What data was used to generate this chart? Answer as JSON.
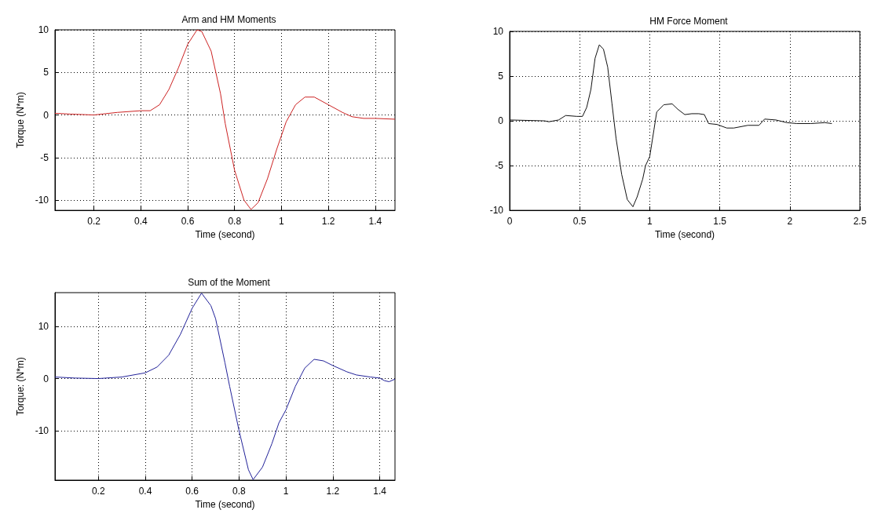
{
  "chart_data": [
    {
      "type": "line",
      "title": "Arm and HM Moments",
      "xlabel": "Time (second)",
      "ylabel": "Torque (N*m)",
      "xlim": [
        0.034,
        1.484
      ],
      "ylim": [
        -11.2,
        10
      ],
      "xticks": [
        0.2,
        0.4,
        0.6,
        0.8,
        1,
        1.2,
        1.4
      ],
      "yticks": [
        -10,
        -5,
        0,
        5,
        10
      ],
      "grid": true,
      "marker": "none",
      "line_style": "solid",
      "series": [
        {
          "color": "#cc2222",
          "x": [
            0.034,
            0.1,
            0.2,
            0.3,
            0.4,
            0.44,
            0.48,
            0.52,
            0.56,
            0.6,
            0.64,
            0.66,
            0.7,
            0.74,
            0.76,
            0.8,
            0.84,
            0.87,
            0.9,
            0.94,
            0.98,
            1.02,
            1.06,
            1.1,
            1.14,
            1.2,
            1.26,
            1.3,
            1.35,
            1.4,
            1.484
          ],
          "values": [
            0.2,
            0.1,
            0,
            0.3,
            0.5,
            0.5,
            1.2,
            3,
            5.5,
            8.3,
            10,
            9.8,
            7.5,
            2.5,
            -1,
            -6.5,
            -10,
            -11.1,
            -10.3,
            -7.5,
            -4,
            -0.8,
            1.2,
            2.1,
            2.1,
            1.2,
            0.3,
            -0.2,
            -0.4,
            -0.4,
            -0.5
          ]
        }
      ]
    },
    {
      "type": "line",
      "title": "HM Force Moment",
      "xlabel": "Time (second)",
      "xlim": [
        0,
        2.5
      ],
      "ylim": [
        -10,
        10
      ],
      "xticks": [
        0,
        0.5,
        1,
        1.5,
        2,
        2.5
      ],
      "yticks": [
        -10,
        -5,
        0,
        5,
        10
      ],
      "grid": true,
      "marker": "none",
      "line_style": "solid",
      "series": [
        {
          "color": "#111111",
          "x": [
            0,
            0.25,
            0.28,
            0.35,
            0.4,
            0.48,
            0.52,
            0.55,
            0.58,
            0.61,
            0.64,
            0.67,
            0.7,
            0.73,
            0.76,
            0.8,
            0.84,
            0.88,
            0.91,
            0.95,
            0.97,
            1,
            1.03,
            1.05,
            1.1,
            1.16,
            1.2,
            1.25,
            1.3,
            1.35,
            1.39,
            1.42,
            1.48,
            1.55,
            1.6,
            1.7,
            1.78,
            1.82,
            1.9,
            1.98,
            2.05,
            2.15,
            2.25,
            2.3
          ],
          "values": [
            0.1,
            0,
            -0.1,
            0.1,
            0.6,
            0.5,
            0.5,
            1.5,
            3.5,
            7,
            8.5,
            8,
            6,
            2,
            -2,
            -6,
            -8.8,
            -9.6,
            -8.5,
            -6.5,
            -5,
            -4,
            -1,
            1,
            1.8,
            1.9,
            1.3,
            0.7,
            0.8,
            0.8,
            0.7,
            -0.3,
            -0.4,
            -0.8,
            -0.8,
            -0.5,
            -0.5,
            0.2,
            0.1,
            -0.2,
            -0.3,
            -0.3,
            -0.2,
            -0.3
          ]
        }
      ]
    },
    {
      "type": "line",
      "title": "Sum of the Moment",
      "xlabel": "Time (second)",
      "ylabel": "Torque: (N*m)",
      "xlim": [
        0.015,
        1.465
      ],
      "ylim": [
        -19.5,
        16.5
      ],
      "xticks": [
        0.2,
        0.4,
        0.6,
        0.8,
        1,
        1.2,
        1.4
      ],
      "yticks": [
        -10,
        0,
        10
      ],
      "grid": true,
      "marker": "none",
      "line_style": "solid",
      "series": [
        {
          "color": "#222299",
          "x": [
            0.015,
            0.1,
            0.2,
            0.3,
            0.4,
            0.45,
            0.5,
            0.55,
            0.6,
            0.64,
            0.68,
            0.7,
            0.74,
            0.76,
            0.8,
            0.84,
            0.86,
            0.9,
            0.94,
            0.97,
            1,
            1.04,
            1.08,
            1.12,
            1.16,
            1.2,
            1.26,
            1.3,
            1.36,
            1.4,
            1.42,
            1.44,
            1.465
          ],
          "values": [
            0.3,
            0.1,
            0,
            0.3,
            1.1,
            2.2,
            4.5,
            8.5,
            13.5,
            16.4,
            14,
            11.5,
            3,
            -1.5,
            -10,
            -17.5,
            -19.4,
            -17,
            -12.5,
            -8.5,
            -6,
            -1.5,
            2,
            3.7,
            3.4,
            2.5,
            1.3,
            0.7,
            0.3,
            0.1,
            -0.4,
            -0.6,
            -0.1
          ]
        }
      ]
    }
  ]
}
